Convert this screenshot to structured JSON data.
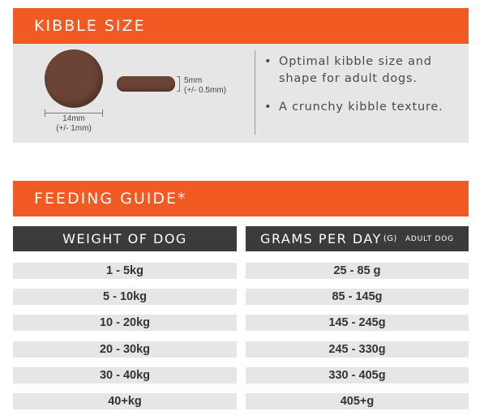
{
  "kibble": {
    "title": "KIBBLE SIZE",
    "diameter_label": "14mm",
    "diameter_tolerance": "(+/- 1mm)",
    "thickness_label": "5mm",
    "thickness_tolerance": "(+/- 0.5mm)",
    "bullets": [
      "Optimal kibble size and shape for adult dogs.",
      "A crunchy kibble texture."
    ]
  },
  "feeding": {
    "title": "FEEDING GUIDE*",
    "col_weight": "WEIGHT OF DOG",
    "col_grams": "GRAMS PER DAY",
    "col_grams_unit": "(G)",
    "col_grams_note": "ADULT DOG",
    "rows": [
      {
        "weight": "1 - 5kg",
        "grams": "25 - 85 g"
      },
      {
        "weight": "5 - 10kg",
        "grams": "85 - 145g"
      },
      {
        "weight": "10 - 20kg",
        "grams": "145 - 245g"
      },
      {
        "weight": "20 - 30kg",
        "grams": "245 - 330g"
      },
      {
        "weight": "30 - 40kg",
        "grams": "330 - 405g"
      },
      {
        "weight": "40+kg",
        "grams": "405+g"
      }
    ]
  },
  "colors": {
    "accent": "#f15a22",
    "header_dark": "#3b3b3b",
    "row_bg": "#e6e6e6",
    "kibble_brown": "#6b4436"
  }
}
